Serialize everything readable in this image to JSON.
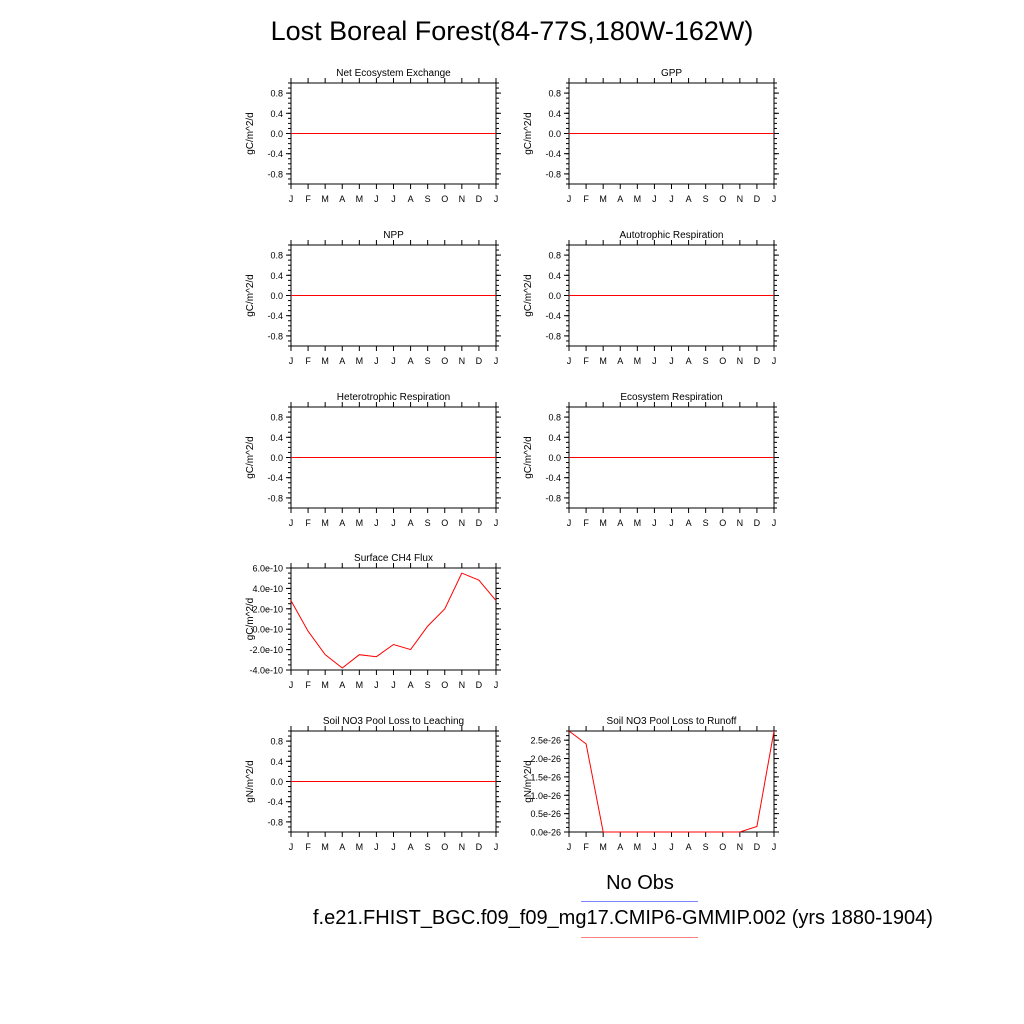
{
  "title": "Lost Boreal Forest(84-77S,180W-162W)",
  "months": [
    "J",
    "F",
    "M",
    "A",
    "M",
    "J",
    "J",
    "A",
    "S",
    "O",
    "N",
    "D",
    "J"
  ],
  "legend": {
    "obs_label": "No Obs",
    "model_label": "f.e21.FHIST_BGC.f09_f09_mg17.CMIP6-GMMIP.002 (yrs 1880-1904)",
    "obs_color": "#7e86ff",
    "model_color": "#ff8080"
  },
  "chart_data": [
    {
      "type": "line",
      "title": "Net Ecosystem Exchange",
      "ylabel": "gC/m^2/d",
      "ylim": [
        -1.0,
        1.0
      ],
      "yticks": [
        0.8,
        0.4,
        0.0,
        -0.4,
        -0.8
      ],
      "ytick_labels": [
        "0.8",
        "0.4",
        "0.0",
        "-0.4",
        "-0.8"
      ],
      "series": [
        {
          "color": "#ff0000",
          "values": [
            0,
            0,
            0,
            0,
            0,
            0,
            0,
            0,
            0,
            0,
            0,
            0,
            0
          ]
        }
      ]
    },
    {
      "type": "line",
      "title": "GPP",
      "ylabel": "gC/m^2/d",
      "ylim": [
        -1.0,
        1.0
      ],
      "yticks": [
        0.8,
        0.4,
        0.0,
        -0.4,
        -0.8
      ],
      "ytick_labels": [
        "0.8",
        "0.4",
        "0.0",
        "-0.4",
        "-0.8"
      ],
      "series": [
        {
          "color": "#ff0000",
          "values": [
            0,
            0,
            0,
            0,
            0,
            0,
            0,
            0,
            0,
            0,
            0,
            0,
            0
          ]
        }
      ]
    },
    {
      "type": "line",
      "title": "NPP",
      "ylabel": "gC/m^2/d",
      "ylim": [
        -1.0,
        1.0
      ],
      "yticks": [
        0.8,
        0.4,
        0.0,
        -0.4,
        -0.8
      ],
      "ytick_labels": [
        "0.8",
        "0.4",
        "0.0",
        "-0.4",
        "-0.8"
      ],
      "series": [
        {
          "color": "#ff0000",
          "values": [
            0,
            0,
            0,
            0,
            0,
            0,
            0,
            0,
            0,
            0,
            0,
            0,
            0
          ]
        }
      ]
    },
    {
      "type": "line",
      "title": "Autotrophic Respiration",
      "ylabel": "gC/m^2/d",
      "ylim": [
        -1.0,
        1.0
      ],
      "yticks": [
        0.8,
        0.4,
        0.0,
        -0.4,
        -0.8
      ],
      "ytick_labels": [
        "0.8",
        "0.4",
        "0.0",
        "-0.4",
        "-0.8"
      ],
      "series": [
        {
          "color": "#ff0000",
          "values": [
            0,
            0,
            0,
            0,
            0,
            0,
            0,
            0,
            0,
            0,
            0,
            0,
            0
          ]
        }
      ]
    },
    {
      "type": "line",
      "title": "Heterotrophic Respiration",
      "ylabel": "gC/m^2/d",
      "ylim": [
        -1.0,
        1.0
      ],
      "yticks": [
        0.8,
        0.4,
        0.0,
        -0.4,
        -0.8
      ],
      "ytick_labels": [
        "0.8",
        "0.4",
        "0.0",
        "-0.4",
        "-0.8"
      ],
      "series": [
        {
          "color": "#ff0000",
          "values": [
            0,
            0,
            0,
            0,
            0,
            0,
            0,
            0,
            0,
            0,
            0,
            0,
            0
          ]
        }
      ]
    },
    {
      "type": "line",
      "title": "Ecosystem Respiration",
      "ylabel": "gC/m^2/d",
      "ylim": [
        -1.0,
        1.0
      ],
      "yticks": [
        0.8,
        0.4,
        0.0,
        -0.4,
        -0.8
      ],
      "ytick_labels": [
        "0.8",
        "0.4",
        "0.0",
        "-0.4",
        "-0.8"
      ],
      "series": [
        {
          "color": "#ff0000",
          "values": [
            0,
            0,
            0,
            0,
            0,
            0,
            0,
            0,
            0,
            0,
            0,
            0,
            0
          ]
        }
      ]
    },
    {
      "type": "line",
      "title": "Surface CH4 Flux",
      "ylabel": "gC/m^2/d",
      "ylim": [
        -4e-10,
        6e-10
      ],
      "yticks": [
        6e-10,
        4e-10,
        2e-10,
        0,
        -2e-10,
        -4e-10
      ],
      "ytick_labels": [
        "6.0e-10",
        "4.0e-10",
        "2.0e-10",
        "0.0e-10",
        "-2.0e-10",
        "-4.0e-10"
      ],
      "series": [
        {
          "color": "#ff0000",
          "values": [
            2.8e-10,
            -2e-11,
            -2.5e-10,
            -3.8e-10,
            -2.5e-10,
            -2.7e-10,
            -1.5e-10,
            -2e-10,
            3e-11,
            2e-10,
            5.5e-10,
            4.8e-10,
            2.8e-10
          ]
        }
      ]
    },
    {
      "type": "line",
      "title": "Soil NO3 Pool Loss to Leaching",
      "ylabel": "gN/m^2/d",
      "ylim": [
        -1.0,
        1.0
      ],
      "yticks": [
        0.8,
        0.4,
        0.0,
        -0.4,
        -0.8
      ],
      "ytick_labels": [
        "0.8",
        "0.4",
        "0.0",
        "-0.4",
        "-0.8"
      ],
      "series": [
        {
          "color": "#ff0000",
          "values": [
            0,
            0,
            0,
            0,
            0,
            0,
            0,
            0,
            0,
            0,
            0,
            0,
            0
          ]
        }
      ]
    },
    {
      "type": "line",
      "title": "Soil NO3 Pool Loss to Runoff",
      "ylabel": "gN/m^2/d",
      "ylim": [
        0,
        2.75e-26
      ],
      "yticks": [
        2.5e-26,
        2e-26,
        1.5e-26,
        1e-26,
        5e-27,
        0
      ],
      "ytick_labels": [
        "2.5e-26",
        "2.0e-26",
        "1.5e-26",
        "1.0e-26",
        "0.5e-26",
        "0.0e-26"
      ],
      "series": [
        {
          "color": "#ff0000",
          "values": [
            2.75e-26,
            2.4e-26,
            0,
            0,
            0,
            0,
            0,
            0,
            0,
            0,
            0,
            1.5e-27,
            2.75e-26
          ]
        }
      ]
    }
  ]
}
